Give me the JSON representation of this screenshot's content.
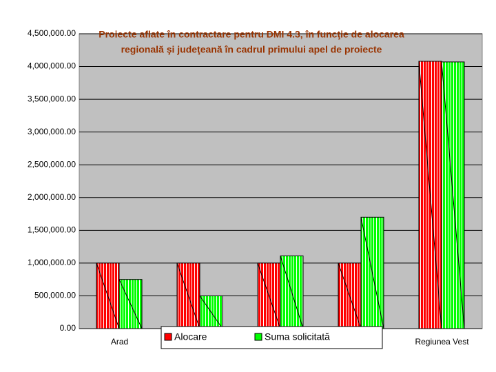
{
  "chart_data": {
    "type": "bar",
    "title": [
      "Proiecte aflate în contractare pentru DMI 4.3, în funcţie de alocarea",
      "regională şi judeţeană în cadrul primului apel de proiecte"
    ],
    "categories": [
      "Arad",
      null,
      null,
      null,
      "Regiunea Vest"
    ],
    "series": [
      {
        "name": "Alocare",
        "color": "#ff0000",
        "values": [
          1000000,
          1000000,
          1000000,
          1000000,
          4080000
        ]
      },
      {
        "name": "Suma solicitată",
        "color": "#00ff00",
        "values": [
          750000,
          500000,
          1110000,
          1700000,
          4070000
        ]
      }
    ],
    "ylim": [
      0,
      4500000
    ],
    "yticks": [
      {
        "value": 0,
        "label": "0.00"
      },
      {
        "value": 500000,
        "label": "500,000.00"
      },
      {
        "value": 1000000,
        "label": "1,000,000.00"
      },
      {
        "value": 1500000,
        "label": "1,500,000.00"
      },
      {
        "value": 2000000,
        "label": "2,000,000.00"
      },
      {
        "value": 2500000,
        "label": "2,500,000.00"
      },
      {
        "value": 3000000,
        "label": "3,000,000.00"
      },
      {
        "value": 3500000,
        "label": "3,500,000.00"
      },
      {
        "value": 4000000,
        "label": "4,000,000.00"
      },
      {
        "value": 4500000,
        "label": "4,500,000.00"
      }
    ],
    "grid": true,
    "legend": "bottom"
  }
}
